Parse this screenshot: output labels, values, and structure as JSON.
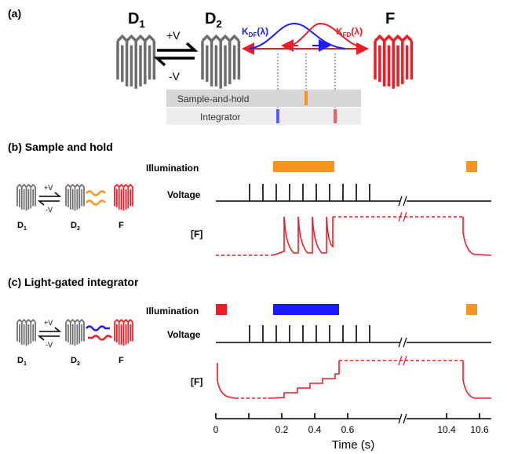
{
  "panel_a": {
    "label": "(a)",
    "state_d1": "D",
    "state_d1_sub": "1",
    "state_d2": "D",
    "state_d2_sub": "2",
    "state_f": "F",
    "plus_v": "+V",
    "minus_v": "-V",
    "kdf_main": "K",
    "kdf_sub": "DF",
    "kdf_arg": "(λ)",
    "kfd_main": "K",
    "kfd_sub": "FD",
    "kfd_arg": "(λ)",
    "row1": "Sample-and-hold",
    "row2": "Integrator"
  },
  "panel_b": {
    "label": "(b) Sample and hold",
    "illumination": "Illumination",
    "voltage": "Voltage",
    "f_label": "[F]",
    "plus_v": "+V",
    "minus_v": "-V",
    "d1": "D",
    "d1_sub": "1",
    "d2": "D",
    "d2_sub": "2",
    "f": "F"
  },
  "panel_c": {
    "label": "(c) Light-gated integrator",
    "illumination": "Illumination",
    "voltage": "Voltage",
    "f_label": "[F]",
    "plus_v": "+V",
    "minus_v": "-V",
    "d1": "D",
    "d1_sub": "1",
    "d2": "D",
    "d2_sub": "2",
    "f": "F"
  },
  "time_axis": {
    "ticks": [
      "0",
      "0.2",
      "0.4",
      "0.6",
      "10.4",
      "10.6"
    ],
    "label": "Time (s)"
  },
  "colors": {
    "orange": "#f7941d",
    "blue": "#1a1aff",
    "red": "#ee1c24",
    "gray": "#6d6d6d"
  }
}
